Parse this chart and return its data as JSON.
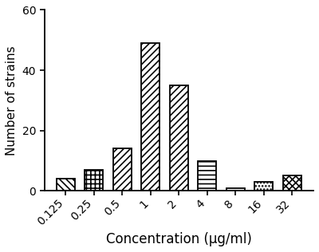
{
  "categories": [
    "0.125",
    "0.25",
    "0.5",
    "1",
    "2",
    "4",
    "8",
    "16",
    "32"
  ],
  "values": [
    4,
    7,
    14,
    49,
    35,
    10,
    1,
    3,
    5
  ],
  "hatch_patterns": [
    "\\\\\\\\",
    "++",
    "////",
    "////",
    "////",
    "--",
    "",
    "....",
    "xx"
  ],
  "bar_color": "white",
  "edge_color": "black",
  "xlabel": "Concentration (μg/ml)",
  "ylabel": "Number of strains",
  "ylim": [
    0,
    60
  ],
  "yticks": [
    0,
    20,
    40,
    60
  ],
  "bar_width": 0.65,
  "linewidth": 1.3,
  "xlabel_fontsize": 12,
  "ylabel_fontsize": 11,
  "tick_fontsize": 10
}
